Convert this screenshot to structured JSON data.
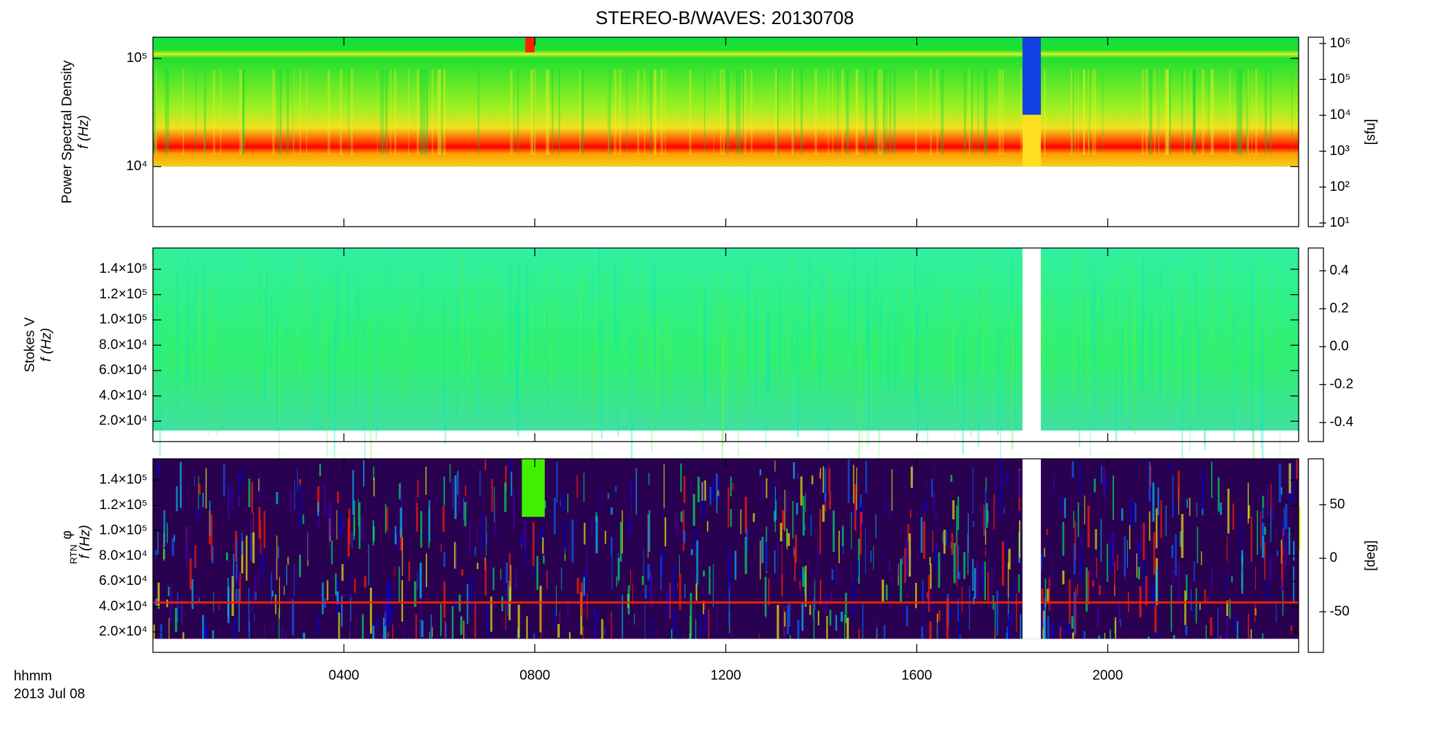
{
  "chart_data": [
    {
      "type": "heatmap",
      "title": "STEREO-B/WAVES: 20130708",
      "ylabel_title": "Power Spectral Density",
      "ylabel": "f (Hz)",
      "xlim": [
        0,
        24
      ],
      "ylim": [
        2780,
        157000
      ],
      "ylog": true,
      "yticks": [
        {
          "value": 10000,
          "label": "10⁴"
        },
        {
          "value": 100000,
          "label": "10⁵"
        }
      ],
      "colorbar": {
        "label": "[sfu]",
        "zlim": [
          7.9,
          1500000
        ],
        "zlog": true,
        "zticks": [
          {
            "value": 10,
            "label": "10¹"
          },
          {
            "value": 100,
            "label": "10²"
          },
          {
            "value": 1000,
            "label": "10³"
          },
          {
            "value": 10000,
            "label": "10⁴"
          },
          {
            "value": 100000,
            "label": "10⁵"
          },
          {
            "value": 1000000,
            "label": "10⁶"
          }
        ]
      }
    },
    {
      "type": "heatmap",
      "ylabel_title": "Stokes V",
      "ylabel": "f (Hz)",
      "xlim": [
        0,
        24
      ],
      "ylim": [
        3900,
        156800
      ],
      "ylog": false,
      "yticks": [
        {
          "value": 20000,
          "label": "2.0×10⁴"
        },
        {
          "value": 40000,
          "label": "4.0×10⁴"
        },
        {
          "value": 60000,
          "label": "6.0×10⁴"
        },
        {
          "value": 80000,
          "label": "8.0×10⁴"
        },
        {
          "value": 100000,
          "label": "1.0×10⁵"
        },
        {
          "value": 120000,
          "label": "1.2×10⁵"
        },
        {
          "value": 140000,
          "label": "1.4×10⁵"
        }
      ],
      "colorbar": {
        "zlim": [
          -0.5,
          0.52
        ],
        "zlog": false,
        "zticks": [
          {
            "value": -0.4,
            "label": "-0.4"
          },
          {
            "value": -0.2,
            "label": "-0.2"
          },
          {
            "value": 0,
            "label": "0.0"
          },
          0.2,
          0.4
        ]
      }
    },
    {
      "type": "heatmap",
      "ylabel_title": "φ",
      "ylabel_subscript": "RTN",
      "ylabel": "f (Hz)",
      "xlabel": "hhmm",
      "date": "2013 Jul 08",
      "xlim": [
        0,
        24
      ],
      "ylim": [
        3900,
        156800
      ],
      "ylog": false,
      "xticks": [
        {
          "value": 4,
          "label": "0400"
        },
        {
          "value": 8,
          "label": "0800"
        },
        {
          "value": 12,
          "label": "1200"
        },
        {
          "value": 16,
          "label": "1600"
        },
        {
          "value": 20,
          "label": "2000"
        }
      ],
      "yticks": [
        {
          "value": 20000,
          "label": "2.0×10⁴"
        },
        {
          "value": 40000,
          "label": "4.0×10⁴"
        },
        {
          "value": 60000,
          "label": "6.0×10⁴"
        },
        {
          "value": 80000,
          "label": "8.0×10⁴"
        },
        {
          "value": 100000,
          "label": "1.0×10⁵"
        },
        {
          "value": 120000,
          "label": "1.2×10⁵"
        },
        {
          "value": 140000,
          "label": "1.4×10⁵"
        }
      ],
      "colorbar": {
        "label": "[deg]",
        "zlim": [
          -88,
          93
        ],
        "zlog": false,
        "zticks": [
          -50,
          0,
          50
        ]
      }
    }
  ]
}
